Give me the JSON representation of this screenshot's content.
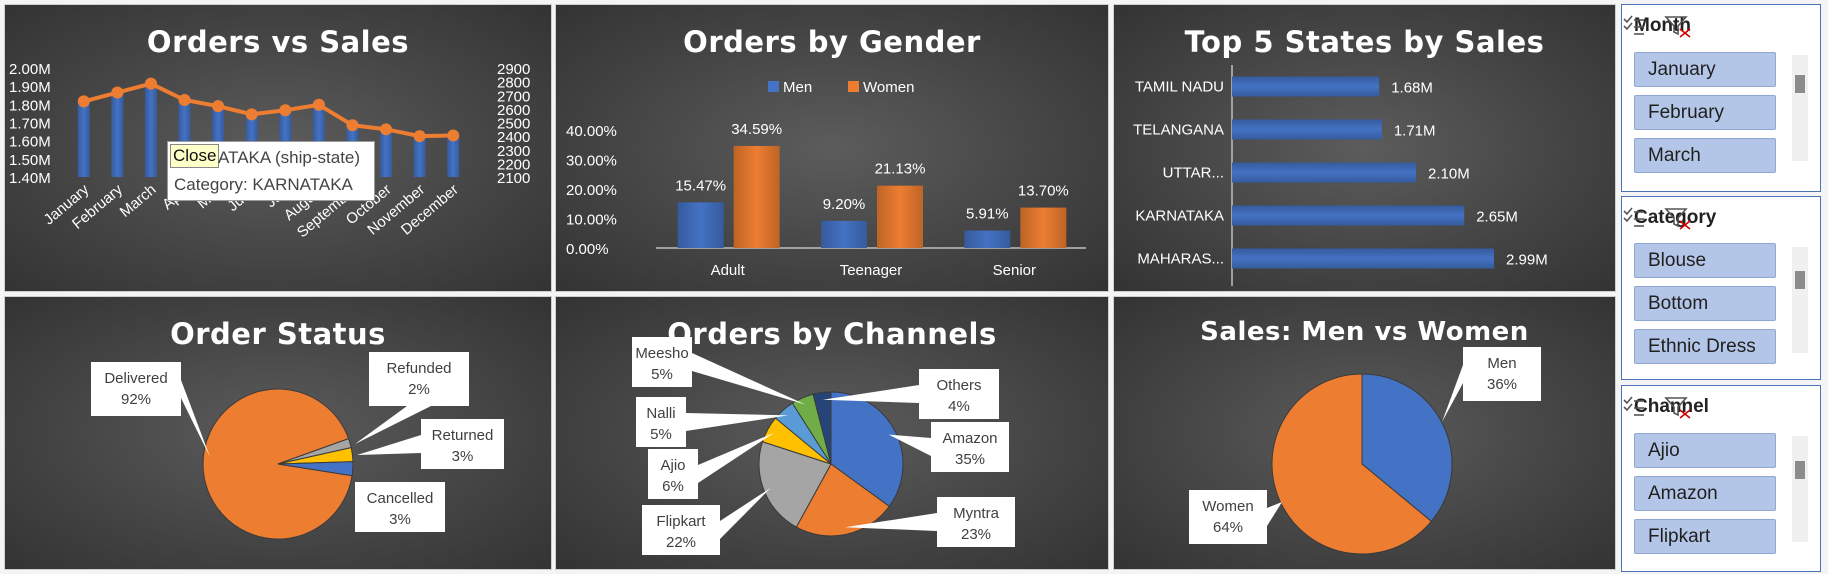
{
  "colors": {
    "men": "#4472c4",
    "women": "#ed7d31",
    "gray": "#a5a5a5",
    "yellow": "#ffc000",
    "lightblue": "#5b9bd5",
    "green": "#70ad47",
    "navy": "#264478"
  },
  "tooltip": {
    "close_label": "Close",
    "series_text": "ATAKA (ship-state)",
    "category_text": "Category: KARNATAKA"
  },
  "chart_data": [
    {
      "type": "bar",
      "title": "Orders vs Sales",
      "categories": [
        "January",
        "February",
        "March",
        "April",
        "May",
        "June",
        "July",
        "August",
        "September",
        "October",
        "November",
        "December"
      ],
      "series": [
        {
          "values": [
            1.83,
            1.88,
            1.93,
            1.84,
            1.8,
            1.76,
            1.78,
            1.82,
            1.71,
            1.66,
            1.62,
            1.62
          ]
        },
        {
          "values": [
            2655,
            2720,
            2785,
            2665,
            2620,
            2560,
            2590,
            2630,
            2480,
            2450,
            2400,
            2405
          ]
        }
      ],
      "y_ticks": [
        "2.00M",
        "1.90M",
        "1.80M",
        "1.70M",
        "1.60M",
        "1.50M",
        "1.40M"
      ],
      "y2_ticks": [
        "2900",
        "2800",
        "2700",
        "2600",
        "2500",
        "2400",
        "2300",
        "2200",
        "2100"
      ],
      "ylim": [
        1.4,
        2.0
      ],
      "y2lim": [
        2100,
        2900
      ]
    },
    {
      "type": "bar",
      "title": "Orders by Gender",
      "categories": [
        "Adult",
        "Teenager",
        "Senior"
      ],
      "series": [
        {
          "name": "Men",
          "values": [
            15.47,
            9.2,
            5.91
          ],
          "labels": [
            "15.47%",
            "9.20%",
            "5.91%"
          ]
        },
        {
          "name": "Women",
          "values": [
            34.59,
            21.13,
            13.7
          ],
          "labels": [
            "34.59%",
            "21.13%",
            "13.70%"
          ]
        }
      ],
      "y_ticks": [
        "40.00%",
        "30.00%",
        "20.00%",
        "10.00%",
        "0.00%"
      ],
      "ylim": [
        0,
        40
      ],
      "legend": "top"
    },
    {
      "type": "bar",
      "title": "Top 5 States by Sales",
      "categories": [
        "TAMIL NADU",
        "TELANGANA",
        "UTTAR...",
        "KARNATAKA",
        "MAHARAS..."
      ],
      "values": [
        1.68,
        1.71,
        2.1,
        2.65,
        2.99
      ],
      "labels": [
        "1.68M",
        "1.71M",
        "2.10M",
        "2.65M",
        "2.99M"
      ],
      "orientation": "horizontal"
    },
    {
      "type": "pie",
      "title": "Order Status",
      "categories": [
        "Delivered",
        "Refunded",
        "Returned",
        "Cancelled"
      ],
      "values": [
        92,
        2,
        3,
        3
      ],
      "labels": [
        "92%",
        "2%",
        "3%",
        "3%"
      ]
    },
    {
      "type": "pie",
      "title": "Orders by Channels",
      "categories": [
        "Amazon",
        "Myntra",
        "Flipkart",
        "Ajio",
        "Nalli",
        "Meesho",
        "Others"
      ],
      "values": [
        35,
        23,
        22,
        6,
        5,
        5,
        4
      ],
      "labels": [
        "35%",
        "23%",
        "22%",
        "6%",
        "5%",
        "5%",
        "4%"
      ]
    },
    {
      "type": "pie",
      "title": "Sales: Men vs Women",
      "categories": [
        "Men",
        "Women"
      ],
      "values": [
        36,
        64
      ],
      "labels": [
        "36%",
        "64%"
      ]
    }
  ],
  "slicers": [
    {
      "title": "Month",
      "items": [
        "January",
        "February",
        "March"
      ]
    },
    {
      "title": "Category",
      "items": [
        "Blouse",
        "Bottom",
        "Ethnic Dress"
      ]
    },
    {
      "title": "Channel",
      "items": [
        "Ajio",
        "Amazon",
        "Flipkart"
      ]
    }
  ]
}
